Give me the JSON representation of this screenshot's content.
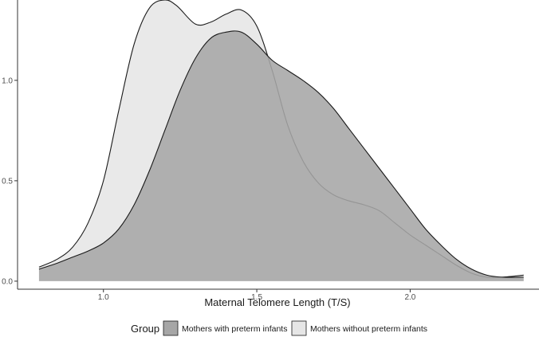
{
  "chart_data": {
    "type": "area",
    "title": "",
    "xlabel": "Maternal Telomere Length (T/S)",
    "ylabel": "",
    "xlim": [
      0.72,
      2.42
    ],
    "ylim": [
      -0.04,
      1.4
    ],
    "x_ticks": [
      1.0,
      1.5,
      2.0
    ],
    "x_tick_labels": [
      "1.0",
      "1.5",
      "2.0"
    ],
    "y_ticks": [
      0.0,
      0.5,
      1.0
    ],
    "y_tick_labels": [
      "0.0",
      "0.5",
      "1.0"
    ],
    "grid": false,
    "legend": {
      "title": "Group",
      "position": "bottom"
    },
    "series": [
      {
        "name": "Mothers without preterm infants",
        "fill": "#e6e6e6",
        "x": [
          0.79,
          0.85,
          0.9,
          0.95,
          1.0,
          1.05,
          1.1,
          1.15,
          1.2,
          1.24,
          1.3,
          1.35,
          1.4,
          1.45,
          1.5,
          1.55,
          1.6,
          1.65,
          1.7,
          1.75,
          1.8,
          1.85,
          1.9,
          1.95,
          2.0,
          2.05,
          2.1,
          2.15,
          2.2,
          2.25,
          2.3,
          2.37
        ],
        "values": [
          0.07,
          0.11,
          0.17,
          0.29,
          0.5,
          0.85,
          1.18,
          1.36,
          1.4,
          1.37,
          1.28,
          1.29,
          1.33,
          1.35,
          1.27,
          1.05,
          0.78,
          0.6,
          0.49,
          0.43,
          0.4,
          0.38,
          0.35,
          0.29,
          0.23,
          0.18,
          0.13,
          0.08,
          0.04,
          0.02,
          0.02,
          0.03
        ]
      },
      {
        "name": "Mothers with preterm infants",
        "fill": "#a6a6a6",
        "x": [
          0.79,
          0.85,
          0.9,
          0.95,
          1.0,
          1.05,
          1.1,
          1.15,
          1.2,
          1.25,
          1.3,
          1.35,
          1.4,
          1.45,
          1.5,
          1.55,
          1.6,
          1.65,
          1.7,
          1.75,
          1.8,
          1.85,
          1.9,
          1.95,
          2.0,
          2.05,
          2.1,
          2.15,
          2.2,
          2.25,
          2.3,
          2.37
        ],
        "values": [
          0.06,
          0.09,
          0.12,
          0.15,
          0.19,
          0.26,
          0.38,
          0.55,
          0.75,
          0.95,
          1.11,
          1.21,
          1.24,
          1.24,
          1.18,
          1.1,
          1.05,
          1.0,
          0.94,
          0.86,
          0.76,
          0.66,
          0.56,
          0.46,
          0.36,
          0.26,
          0.18,
          0.11,
          0.06,
          0.03,
          0.02,
          0.02
        ]
      }
    ],
    "legend_order": [
      1,
      0
    ]
  }
}
